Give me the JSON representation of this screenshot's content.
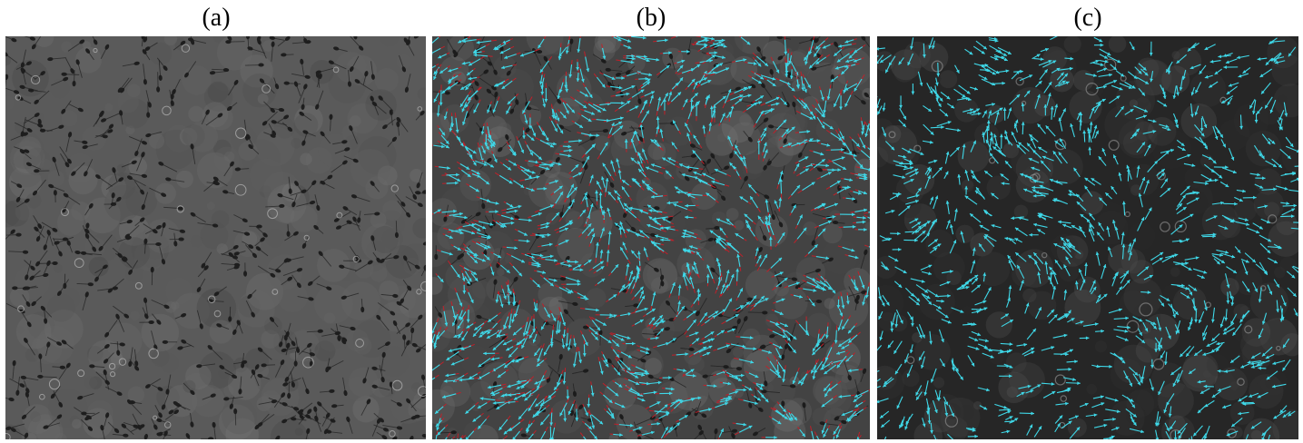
{
  "panels": [
    {
      "id": "a",
      "label": "(a)",
      "content": "micrograph"
    },
    {
      "id": "b",
      "label": "(b)",
      "content": "micrograph-with-arrows",
      "arrow_color": "#3fd8e8",
      "tail_color": "#c0202a"
    },
    {
      "id": "c",
      "label": "(c)",
      "content": "micrograph-with-arrows",
      "arrow_color": "#3fd8e8"
    }
  ]
}
